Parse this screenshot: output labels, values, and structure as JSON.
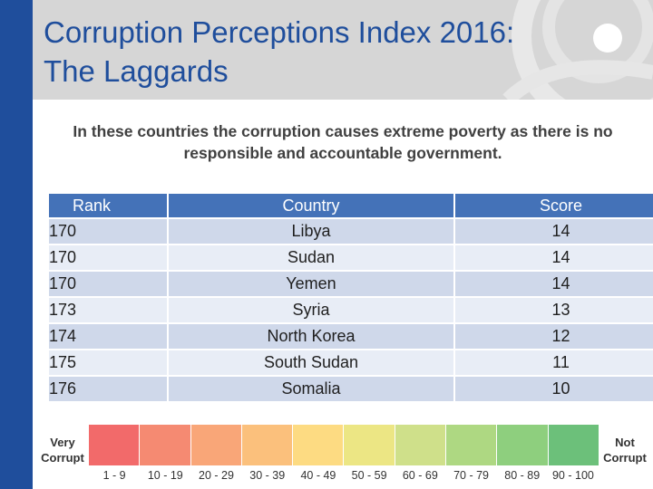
{
  "slide": {
    "title_line1": "Corruption Perceptions Index 2016:",
    "title_line2": "The Laggards",
    "subtitle": "In these countries the corruption causes extreme poverty as there is no responsible and accountable government."
  },
  "table": {
    "headers": {
      "rank": "Rank",
      "country": "Country",
      "score": "Score"
    },
    "rows": [
      {
        "rank": "170",
        "country": "Libya",
        "score": "14"
      },
      {
        "rank": "170",
        "country": "Sudan",
        "score": "14"
      },
      {
        "rank": "170",
        "country": "Yemen",
        "score": "14"
      },
      {
        "rank": "173",
        "country": "Syria",
        "score": "13"
      },
      {
        "rank": "174",
        "country": "North Korea",
        "score": "12"
      },
      {
        "rank": "175",
        "country": "South Sudan",
        "score": "11"
      },
      {
        "rank": "176",
        "country": "Somalia",
        "score": "10"
      }
    ]
  },
  "legend": {
    "left_label": "Very Corrupt",
    "right_label": "Not Corrupt",
    "ranges": [
      {
        "label": "1 - 9",
        "color": "#f26a6a"
      },
      {
        "label": "10 - 19",
        "color": "#f58a72"
      },
      {
        "label": "20 - 29",
        "color": "#f9a678"
      },
      {
        "label": "30 - 39",
        "color": "#fbc07c"
      },
      {
        "label": "40 - 49",
        "color": "#fddb82"
      },
      {
        "label": "50 - 59",
        "color": "#ece684"
      },
      {
        "label": "60 - 69",
        "color": "#cfe08a"
      },
      {
        "label": "70 - 79",
        "color": "#aed882"
      },
      {
        "label": "80 - 89",
        "color": "#8ecf7e"
      },
      {
        "label": "90 - 100",
        "color": "#6cc07a"
      }
    ]
  }
}
